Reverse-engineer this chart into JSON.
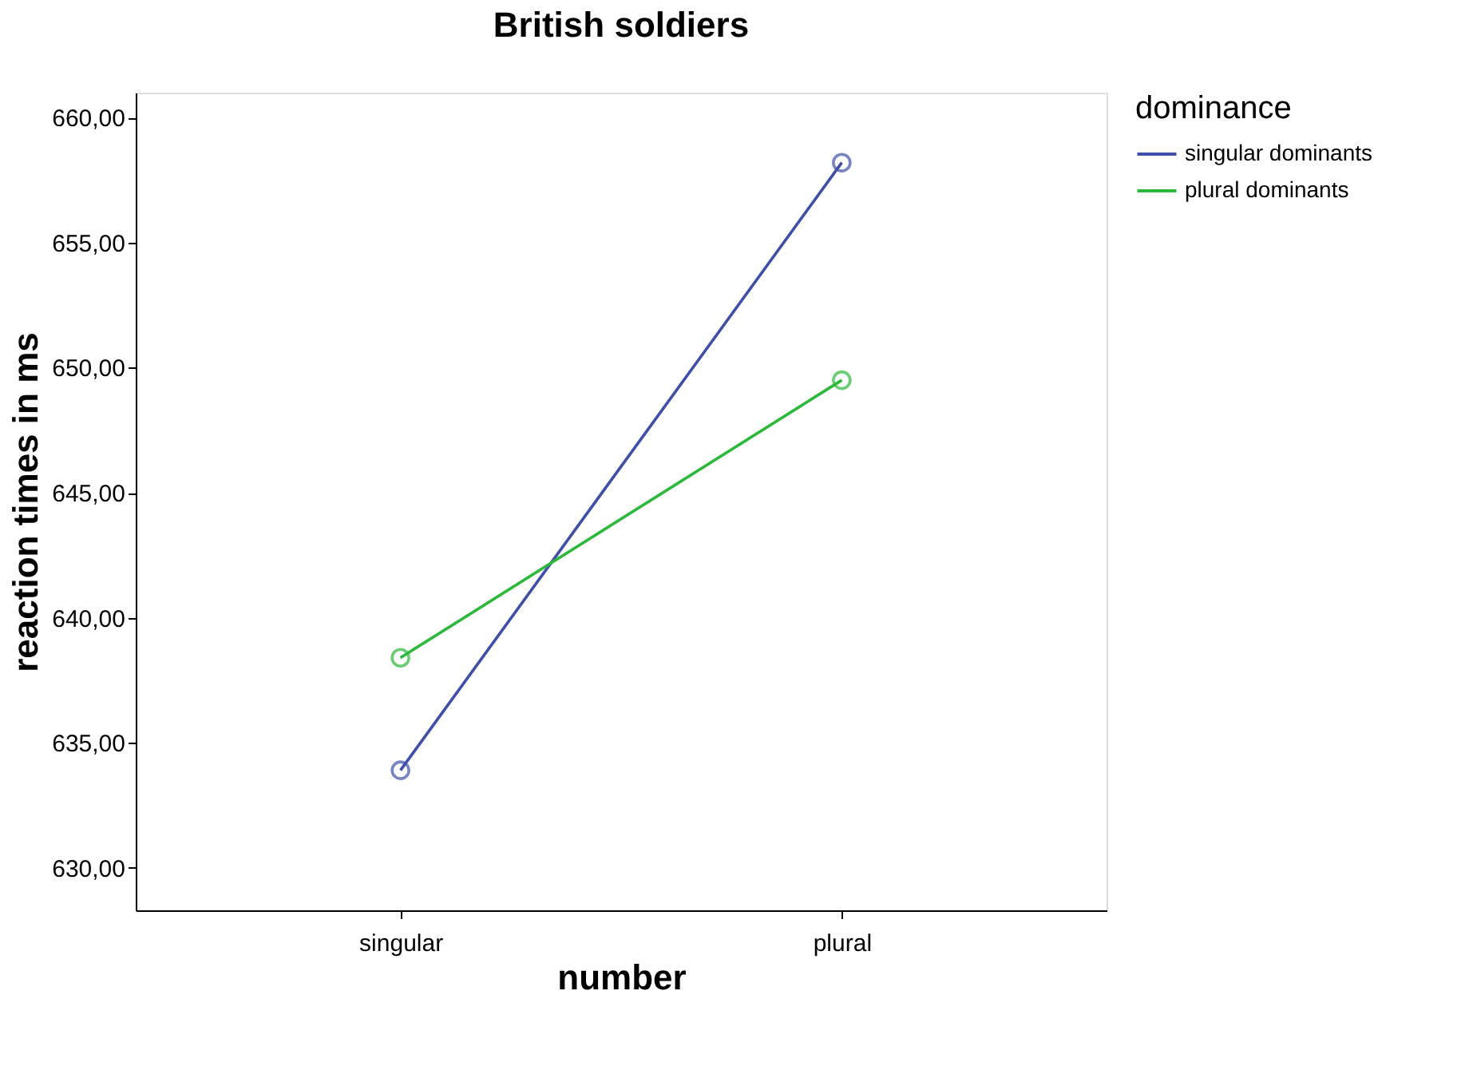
{
  "chart_data": {
    "type": "line",
    "title": "British soldiers",
    "xlabel": "number",
    "ylabel": "reaction times in ms",
    "legend_title": "dominance",
    "categories": [
      "singular",
      "plural"
    ],
    "series": [
      {
        "name": "singular dominants",
        "color": "#3f4fa8",
        "values": [
          633.9,
          658.2
        ]
      },
      {
        "name": "plural dominants",
        "color": "#2cb83a",
        "values": [
          638.4,
          649.5
        ]
      }
    ],
    "ylim": [
      628.3,
      661
    ],
    "yticks": [
      {
        "value": 630,
        "label": "630,00"
      },
      {
        "value": 635,
        "label": "635,00"
      },
      {
        "value": 640,
        "label": "640,00"
      },
      {
        "value": 645,
        "label": "645,00"
      },
      {
        "value": 650,
        "label": "650,00"
      },
      {
        "value": 655,
        "label": "655,00"
      },
      {
        "value": 660,
        "label": "660,00"
      }
    ],
    "grid": false,
    "legend": "top right",
    "marker": "circle",
    "line_style": "solid"
  }
}
